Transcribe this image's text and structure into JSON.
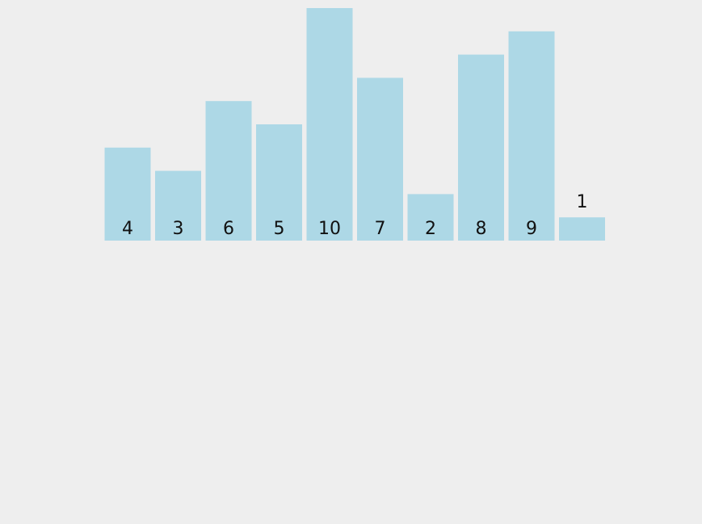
{
  "chart_data": {
    "type": "bar",
    "categories": [
      "4",
      "3",
      "6",
      "5",
      "10",
      "7",
      "2",
      "8",
      "9",
      "1"
    ],
    "values": [
      4,
      3,
      6,
      5,
      10,
      7,
      2,
      8,
      9,
      1
    ],
    "title": "",
    "xlabel": "",
    "ylabel": "",
    "ylim": [
      0,
      10
    ],
    "grid": false,
    "legend": "none",
    "colors": {
      "bar": "#add8e6",
      "background": "#eeeeee",
      "label": "#111111"
    }
  }
}
